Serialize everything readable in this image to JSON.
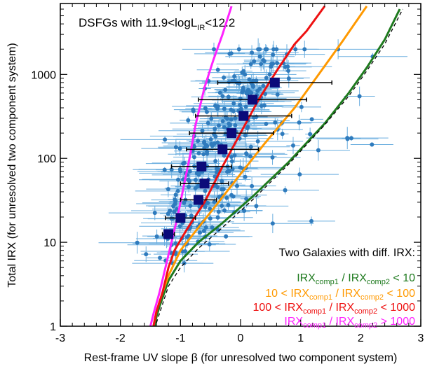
{
  "chart_data": {
    "type": "scatter",
    "title": "DSFGs with 11.9<logL_IR<12.2",
    "title_parts": {
      "main": "DSFGs with 11.9<logL",
      "sub": "IR",
      "tail": "<12.2"
    },
    "xlabel": "Rest-frame UV slope β (for unresolved two component system)",
    "ylabel": "Total IRX (for unresolved two component system)",
    "xlim": [
      -3,
      3
    ],
    "ylim": [
      1,
      7000
    ],
    "yscale": "log",
    "x_ticks": [
      -3,
      -2,
      -1,
      0,
      1,
      2,
      3
    ],
    "x_tick_labels": [
      "-3",
      "-2",
      "-1",
      "0",
      "1",
      "2",
      "3"
    ],
    "y_ticks": [
      1,
      10,
      100,
      1000
    ],
    "y_tick_labels": [
      "1",
      "10",
      "100",
      "1000"
    ],
    "grid": false,
    "legend": {
      "placement": "bottom-right",
      "header": "Two Galaxies with diff. IRX:",
      "entries": [
        {
          "color": "#1e7a1e",
          "parts": [
            "IRX",
            "comp1",
            " / IRX",
            "comp2",
            " < 10"
          ]
        },
        {
          "color": "#ff9900",
          "parts": [
            "10 < IRX",
            "comp1",
            " / IRX",
            "comp2",
            " < 100"
          ]
        },
        {
          "color": "#ee1111",
          "parts": [
            "100 < IRX",
            "comp1",
            " / IRX",
            "comp2",
            " < 1000"
          ]
        },
        {
          "color": "#ff22ff",
          "parts": [
            "IRX",
            "comp1",
            " / IRX",
            "comp2",
            " > 1000"
          ]
        }
      ]
    },
    "series": [
      {
        "name": "IRX_comp1 / IRX_comp2 < 10",
        "color": "#1e7a1e",
        "style": "line",
        "x": [
          -1.43,
          -1.4,
          -1.35,
          -1.2,
          -1.0,
          -0.7,
          -0.3,
          0.2,
          0.8,
          1.4,
          1.8,
          2.1,
          2.4,
          2.65
        ],
        "y": [
          1,
          1.3,
          1.7,
          3.5,
          6,
          10,
          17,
          35,
          90,
          260,
          600,
          1200,
          2600,
          6000
        ]
      },
      {
        "name": "Reference relation",
        "color": "#000000",
        "style": "dashed",
        "x": [
          -1.4,
          -1.2,
          -1.0,
          -0.7,
          -0.3,
          0.2,
          0.8,
          1.4,
          1.8,
          2.1,
          2.4,
          2.7
        ],
        "y": [
          1.1,
          3,
          5,
          8.5,
          15,
          32,
          85,
          250,
          550,
          1100,
          2300,
          6000
        ]
      },
      {
        "name": "10 < IRX_comp1 / IRX_comp2 < 100",
        "color": "#ff9900",
        "style": "line",
        "x": [
          -1.45,
          -1.4,
          -1.3,
          -1.2,
          -1.0,
          -0.7,
          -0.4,
          0.0,
          0.4,
          0.9,
          1.3,
          1.7,
          2.1
        ],
        "y": [
          1,
          1.5,
          2.5,
          4,
          8,
          15,
          28,
          65,
          150,
          400,
          1000,
          2500,
          6500
        ]
      },
      {
        "name": "100 < IRX_comp1 / IRX_comp2 < 1000",
        "color": "#ee1111",
        "style": "line",
        "x": [
          -1.45,
          -1.4,
          -1.3,
          -1.2,
          -1.1,
          -0.9,
          -0.6,
          -0.3,
          0.0,
          0.3,
          0.6,
          0.9,
          1.1,
          1.4
        ],
        "y": [
          1,
          1.5,
          2.5,
          5,
          8,
          14,
          30,
          80,
          200,
          500,
          1100,
          2300,
          3300,
          6500
        ]
      },
      {
        "name": "IRX_comp1 / IRX_comp2 > 1000",
        "color": "#ff22ff",
        "style": "line",
        "x": [
          -1.5,
          -1.45,
          -1.35,
          -1.25,
          -1.15,
          -1.05,
          -0.95,
          -0.85,
          -0.75,
          -0.6,
          -0.45,
          -0.3,
          -0.15
        ],
        "y": [
          1,
          1.4,
          2.5,
          5,
          10,
          20,
          45,
          100,
          250,
          700,
          1500,
          3000,
          6500
        ]
      }
    ],
    "binned_points": [
      {
        "x": -1.2,
        "y": 12.5,
        "xerr": 0.1
      },
      {
        "x": -1.0,
        "y": 19.5,
        "xerr": 0.25
      },
      {
        "x": -0.7,
        "y": 32,
        "xerr": 0.3
      },
      {
        "x": -0.6,
        "y": 50,
        "xerr": 0.4
      },
      {
        "x": -0.65,
        "y": 80,
        "xerr": 0.5
      },
      {
        "x": -0.3,
        "y": 128,
        "xerr": 0.6
      },
      {
        "x": -0.15,
        "y": 200,
        "xerr": 0.7
      },
      {
        "x": 0.05,
        "y": 320,
        "xerr": 0.8
      },
      {
        "x": 0.2,
        "y": 500,
        "xerr": 0.9
      },
      {
        "x": 0.57,
        "y": 800,
        "xerr": 0.95
      }
    ],
    "scatter_points": {
      "count": 320,
      "color": "#2f7bbd",
      "errorbar_color": "#6aaedf",
      "note": "individual galaxies, beta roughly -2 to 2, IRX roughly 5 to 2000"
    }
  }
}
